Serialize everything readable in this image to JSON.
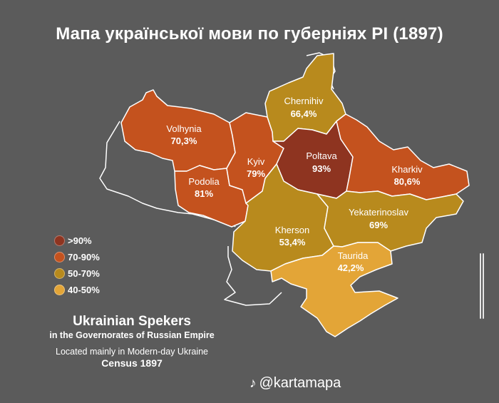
{
  "title": "Мапа української мови по губерніях РІ (1897)",
  "regions": [
    {
      "id": "volhynia",
      "name": "Volhynia",
      "value": "70,3%",
      "color": "#c4521e"
    },
    {
      "id": "podolia",
      "name": "Podolia",
      "value": "81%",
      "color": "#c4521e"
    },
    {
      "id": "kyiv",
      "name": "Kyiv",
      "value": "79%",
      "color": "#c4521e"
    },
    {
      "id": "chernihiv",
      "name": "Chernihiv",
      "value": "66,4%",
      "color": "#b88a1d"
    },
    {
      "id": "poltava",
      "name": "Poltava",
      "value": "93%",
      "color": "#8e3420"
    },
    {
      "id": "kharkiv",
      "name": "Kharkiv",
      "value": "80,6%",
      "color": "#c4521e"
    },
    {
      "id": "kherson",
      "name": "Kherson",
      "value": "53,4%",
      "color": "#b88a1d"
    },
    {
      "id": "yekaterinoslav",
      "name": "Yekaterinoslav",
      "value": "69%",
      "color": "#b88a1d"
    },
    {
      "id": "taurida",
      "name": "Taurida",
      "value": "42,2%",
      "color": "#e3a537"
    }
  ],
  "legend": [
    {
      "label": ">90%",
      "color": "#8e3420"
    },
    {
      "label": "70-90%",
      "color": "#c4521e"
    },
    {
      "label": "50-70%",
      "color": "#b88a1d"
    },
    {
      "label": "40-50%",
      "color": "#e3a537"
    }
  ],
  "caption": {
    "heading": "Ukrainian Spekers",
    "subheading": "in the Governorates of Russian Empire",
    "note": "Located mainly in Modern-day Ukraine",
    "census": "Census 1897"
  },
  "watermark": {
    "icon": "tiktok-icon",
    "handle": "@kartamapa"
  }
}
